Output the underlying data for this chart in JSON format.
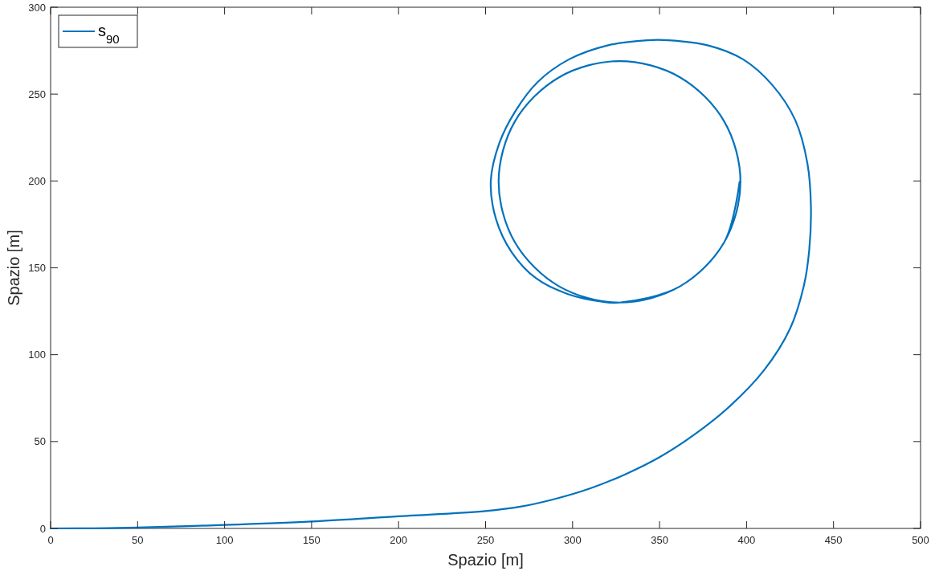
{
  "chart_data": {
    "type": "line",
    "xlabel": "Spazio [m]",
    "ylabel": "Spazio [m]",
    "xlim": [
      0,
      500
    ],
    "ylim": [
      0,
      300
    ],
    "xticks": [
      0,
      50,
      100,
      150,
      200,
      250,
      300,
      350,
      400,
      450,
      500
    ],
    "yticks": [
      0,
      50,
      100,
      150,
      200,
      250,
      300
    ],
    "grid": false,
    "legend": "top left",
    "marker": "none",
    "line_style": "solid",
    "series": [
      {
        "name": "s$_{90}$",
        "color": "#0072bd",
        "x": [
          0,
          25,
          50,
          100,
          150,
          200,
          250,
          270,
          290,
          310,
          330,
          350,
          370,
          390,
          410,
          425,
          433,
          436,
          437,
          435,
          428,
          415,
          398,
          378,
          355,
          343,
          320,
          298,
          280,
          267,
          258,
          253,
          256,
          265,
          279,
          297,
          317,
          327,
          361.7,
          387.2,
          396.5,
          387.2,
          361.7,
          327,
          292.3,
          266.8,
          257.5,
          266.8,
          292.3,
          327,
          361.7,
          387.2,
          396.5,
          387.2,
          361.7,
          327,
          292.3,
          266.8,
          257.5,
          266.8,
          292.3,
          327,
          361.7,
          387.2,
          396
        ],
        "values": [
          0,
          0.1,
          0.5,
          2,
          4,
          7,
          10,
          12.5,
          17,
          23,
          31,
          41,
          54,
          70,
          91,
          115,
          140,
          160,
          185,
          210,
          235,
          255,
          270,
          278,
          281,
          281,
          278,
          270,
          257,
          240,
          222,
          200,
          178,
          159,
          144,
          135,
          130.5,
          130,
          139.3,
          164.8,
          199.5,
          234.2,
          259.7,
          269,
          259.7,
          234.2,
          199.5,
          164.8,
          139.3,
          130,
          139.3,
          164.8,
          199.5,
          234.2,
          259.7,
          269,
          259.7,
          234.2,
          199.5,
          164.8,
          139.3,
          130,
          139.3,
          164.8,
          199.5
        ]
      }
    ]
  }
}
